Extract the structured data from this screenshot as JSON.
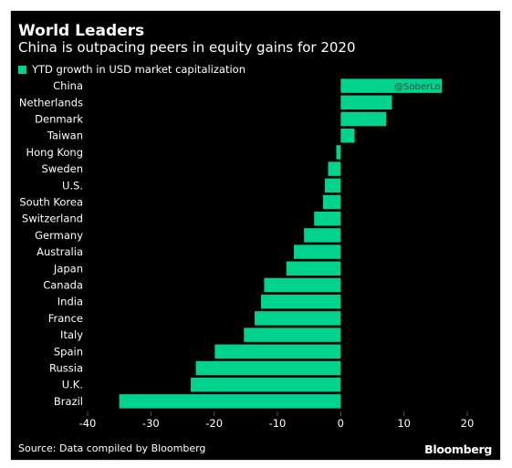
{
  "header": {
    "title": "World Leaders",
    "subtitle": "China is outpacing peers in equity gains for 2020"
  },
  "footer": {
    "source": "Source: Data compiled by Bloomberg",
    "brand": "Bloomberg"
  },
  "watermark": "@SoberLo",
  "colors": {
    "background": "#000000",
    "bar": "#00d38d",
    "text": "#ffffff",
    "tick": "#555555"
  },
  "chart_data": {
    "type": "bar",
    "orientation": "horizontal",
    "categories": [
      "China",
      "Netherlands",
      "Denmark",
      "Taiwan",
      "Hong Kong",
      "Sweden",
      "U.S.",
      "South Korea",
      "Switzerland",
      "Germany",
      "Australia",
      "Japan",
      "Canada",
      "India",
      "France",
      "Italy",
      "Spain",
      "Russia",
      "U.K.",
      "Brazil"
    ],
    "series": [
      {
        "name": "YTD growth in USD market capitalization",
        "values": [
          16,
          8.1,
          7.2,
          2.2,
          -0.7,
          -2,
          -2.5,
          -2.8,
          -4.2,
          -5.8,
          -7.4,
          -8.6,
          -12.1,
          -12.6,
          -13.6,
          -15.3,
          -19.9,
          -22.9,
          -23.7,
          -35
        ]
      }
    ],
    "xlim": [
      -40,
      20
    ],
    "xticks": [
      -40,
      -30,
      -20,
      -10,
      0,
      10,
      20
    ],
    "legend_position": "top-left",
    "grid": false
  }
}
